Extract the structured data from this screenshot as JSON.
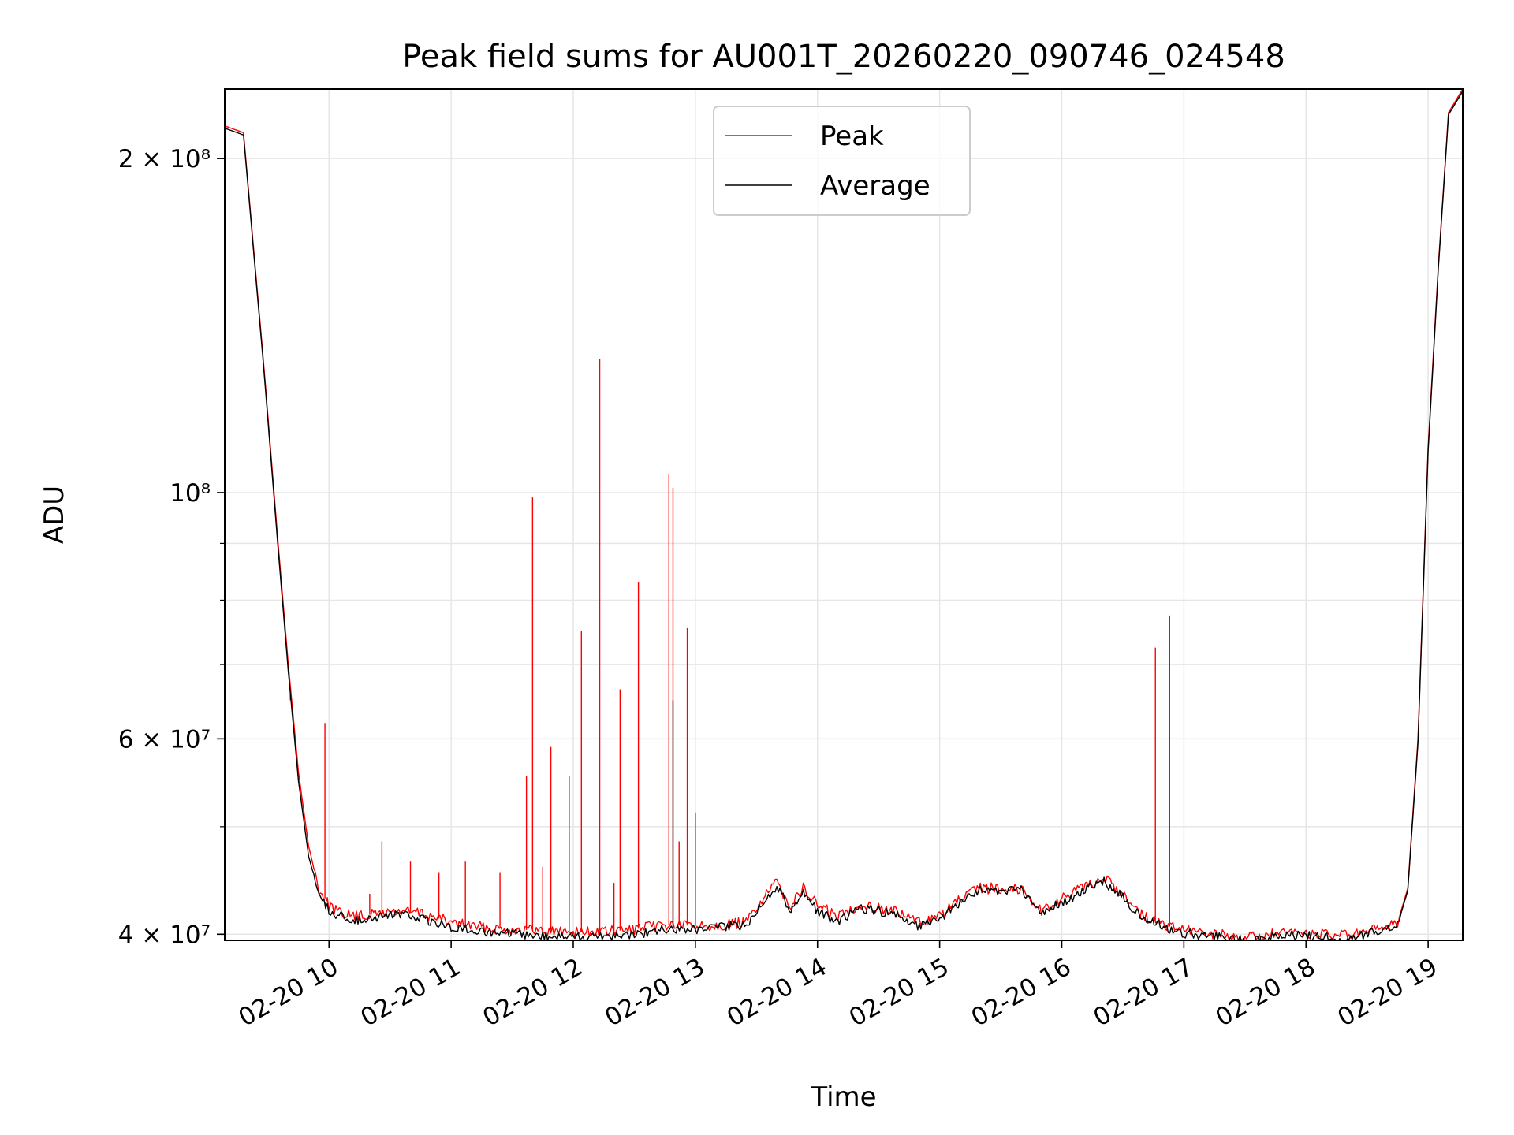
{
  "chart_data": {
    "type": "line",
    "title": "Peak field sums for AU001T_20260220_090746_024548",
    "xlabel": "Time",
    "ylabel": "ADU",
    "yscale": "log",
    "ylim": [
      39500000,
      231000000
    ],
    "xlim": [
      "02-20 09:08:46",
      "02-20 19:17:00"
    ],
    "grid": true,
    "legend": "upper center",
    "x_ticks": [
      "02-20 10",
      "02-20 11",
      "02-20 12",
      "02-20 13",
      "02-20 14",
      "02-20 15",
      "02-20 16",
      "02-20 17",
      "02-20 18",
      "02-20 19"
    ],
    "y_ticks": [
      {
        "value": 40000000,
        "label": "4 × 10⁷"
      },
      {
        "value": 60000000,
        "label": "6 × 10⁷"
      },
      {
        "value": 100000000,
        "label": "10⁸"
      },
      {
        "value": 200000000,
        "label": "2 × 10⁸"
      }
    ],
    "series": [
      {
        "name": "Peak",
        "color": "#ff0000",
        "baseline": {
          "x": [
            "02-20 09:08:46",
            "02-20 09:18:00",
            "02-20 09:28:00",
            "02-20 09:35:00",
            "02-20 09:40:00",
            "02-20 09:45:00",
            "02-20 09:50:00",
            "02-20 09:55:00",
            "02-20 10:00:00",
            "02-20 10:05:00",
            "02-20 10:15:00",
            "02-20 10:25:00",
            "02-20 10:35:00",
            "02-20 10:45:00",
            "02-20 11:00:00",
            "02-20 11:15:00",
            "02-20 11:30:00",
            "02-20 11:45:00",
            "02-20 12:00:00",
            "02-20 12:15:00",
            "02-20 12:30:00",
            "02-20 12:45:00",
            "02-20 13:00:00",
            "02-20 13:15:00",
            "02-20 13:25:00",
            "02-20 13:35:00",
            "02-20 13:40:00",
            "02-20 13:47:00",
            "02-20 13:53:00",
            "02-20 14:00:00",
            "02-20 14:10:00",
            "02-20 14:20:00",
            "02-20 14:30:00",
            "02-20 14:40:00",
            "02-20 14:50:00",
            "02-20 15:00:00",
            "02-20 15:10:00",
            "02-20 15:20:00",
            "02-20 15:30:00",
            "02-20 15:40:00",
            "02-20 15:50:00",
            "02-20 16:00:00",
            "02-20 16:10:00",
            "02-20 16:20:00",
            "02-20 16:30:00",
            "02-20 16:40:00",
            "02-20 16:50:00",
            "02-20 17:00:00",
            "02-20 17:15:00",
            "02-20 17:30:00",
            "02-20 17:45:00",
            "02-20 18:00:00",
            "02-20 18:15:00",
            "02-20 18:25:00",
            "02-20 18:35:00",
            "02-20 18:45:00",
            "02-20 18:50:00",
            "02-20 18:55:00",
            "02-20 19:00:00",
            "02-20 19:05:00",
            "02-20 19:10:00",
            "02-20 19:17:00"
          ],
          "y": [
            214000000,
            211000000,
            130000000,
            90000000,
            70000000,
            56000000,
            48000000,
            44000000,
            42500000,
            41800000,
            41500000,
            41800000,
            42000000,
            41800000,
            41000000,
            40600000,
            40400000,
            40300000,
            40200000,
            40200000,
            40400000,
            40800000,
            40700000,
            40800000,
            41000000,
            43500000,
            44500000,
            42500000,
            44000000,
            42500000,
            41500000,
            42500000,
            42300000,
            41800000,
            41000000,
            41500000,
            43000000,
            44000000,
            44000000,
            44000000,
            42000000,
            43000000,
            44000000,
            45000000,
            43500000,
            41500000,
            40800000,
            40300000,
            40000000,
            39700000,
            40000000,
            40100000,
            39900000,
            40000000,
            40400000,
            41000000,
            44000000,
            60000000,
            110000000,
            160000000,
            220000000,
            231000000
          ]
        },
        "spikes": [
          {
            "x": "02-20 09:41:00",
            "y": 65000000
          },
          {
            "x": "02-20 09:58:00",
            "y": 62000000
          },
          {
            "x": "02-20 10:20:00",
            "y": 43500000
          },
          {
            "x": "02-20 10:26:00",
            "y": 48500000
          },
          {
            "x": "02-20 10:40:00",
            "y": 46500000
          },
          {
            "x": "02-20 10:54:00",
            "y": 45500000
          },
          {
            "x": "02-20 11:07:00",
            "y": 46500000
          },
          {
            "x": "02-20 11:24:00",
            "y": 45500000
          },
          {
            "x": "02-20 11:37:00",
            "y": 55500000
          },
          {
            "x": "02-20 11:40:00",
            "y": 99000000
          },
          {
            "x": "02-20 11:45:00",
            "y": 46000000
          },
          {
            "x": "02-20 11:49:00",
            "y": 59000000
          },
          {
            "x": "02-20 11:58:00",
            "y": 55500000
          },
          {
            "x": "02-20 12:04:00",
            "y": 75000000
          },
          {
            "x": "02-20 12:13:00",
            "y": 132000000
          },
          {
            "x": "02-20 12:20:00",
            "y": 44500000
          },
          {
            "x": "02-20 12:23:00",
            "y": 66500000
          },
          {
            "x": "02-20 12:32:00",
            "y": 83000000
          },
          {
            "x": "02-20 12:47:00",
            "y": 104000000
          },
          {
            "x": "02-20 12:49:00",
            "y": 101000000
          },
          {
            "x": "02-20 12:52:00",
            "y": 48500000
          },
          {
            "x": "02-20 12:56:00",
            "y": 75500000
          },
          {
            "x": "02-20 13:00:00",
            "y": 51500000
          },
          {
            "x": "02-20 16:46:00",
            "y": 72500000
          },
          {
            "x": "02-20 16:53:00",
            "y": 77500000
          }
        ]
      },
      {
        "name": "Average",
        "color": "#000000",
        "baseline": {
          "x": [
            "02-20 09:08:46",
            "02-20 09:18:00",
            "02-20 09:28:00",
            "02-20 09:35:00",
            "02-20 09:40:00",
            "02-20 09:45:00",
            "02-20 09:50:00",
            "02-20 09:55:00",
            "02-20 10:00:00",
            "02-20 10:05:00",
            "02-20 10:15:00",
            "02-20 10:25:00",
            "02-20 10:35:00",
            "02-20 10:45:00",
            "02-20 11:00:00",
            "02-20 11:15:00",
            "02-20 11:30:00",
            "02-20 11:45:00",
            "02-20 12:00:00",
            "02-20 12:15:00",
            "02-20 12:30:00",
            "02-20 12:45:00",
            "02-20 13:00:00",
            "02-20 13:15:00",
            "02-20 13:25:00",
            "02-20 13:35:00",
            "02-20 13:40:00",
            "02-20 13:47:00",
            "02-20 13:53:00",
            "02-20 14:00:00",
            "02-20 14:10:00",
            "02-20 14:20:00",
            "02-20 14:30:00",
            "02-20 14:40:00",
            "02-20 14:50:00",
            "02-20 15:00:00",
            "02-20 15:10:00",
            "02-20 15:20:00",
            "02-20 15:30:00",
            "02-20 15:40:00",
            "02-20 15:50:00",
            "02-20 16:00:00",
            "02-20 16:10:00",
            "02-20 16:20:00",
            "02-20 16:30:00",
            "02-20 16:40:00",
            "02-20 16:50:00",
            "02-20 17:00:00",
            "02-20 17:15:00",
            "02-20 17:30:00",
            "02-20 17:45:00",
            "02-20 18:00:00",
            "02-20 18:15:00",
            "02-20 18:25:00",
            "02-20 18:35:00",
            "02-20 18:45:00",
            "02-20 18:50:00",
            "02-20 18:55:00",
            "02-20 19:00:00",
            "02-20 19:05:00",
            "02-20 19:10:00",
            "02-20 19:17:00"
          ],
          "y": [
            213000000,
            210000000,
            129000000,
            89000000,
            69000000,
            55000000,
            47000000,
            43500000,
            42000000,
            41500000,
            41200000,
            41500000,
            41700000,
            41300000,
            40600000,
            40200000,
            40000000,
            39900000,
            39800000,
            39900000,
            40000000,
            40400000,
            40400000,
            40600000,
            40800000,
            43200000,
            44200000,
            42000000,
            43700000,
            42000000,
            41000000,
            42200000,
            42000000,
            41500000,
            40700000,
            41200000,
            42800000,
            43800000,
            43800000,
            43800000,
            41800000,
            42700000,
            43700000,
            44700000,
            43200000,
            41300000,
            40600000,
            40100000,
            39800000,
            39500000,
            39800000,
            39900000,
            39700000,
            39800000,
            40200000,
            40800000,
            43800000,
            59500000,
            109000000,
            159000000,
            219000000,
            230000000
          ]
        },
        "spikes": [
          {
            "x": "02-20 12:49:00",
            "y": 65000000
          }
        ]
      }
    ]
  }
}
